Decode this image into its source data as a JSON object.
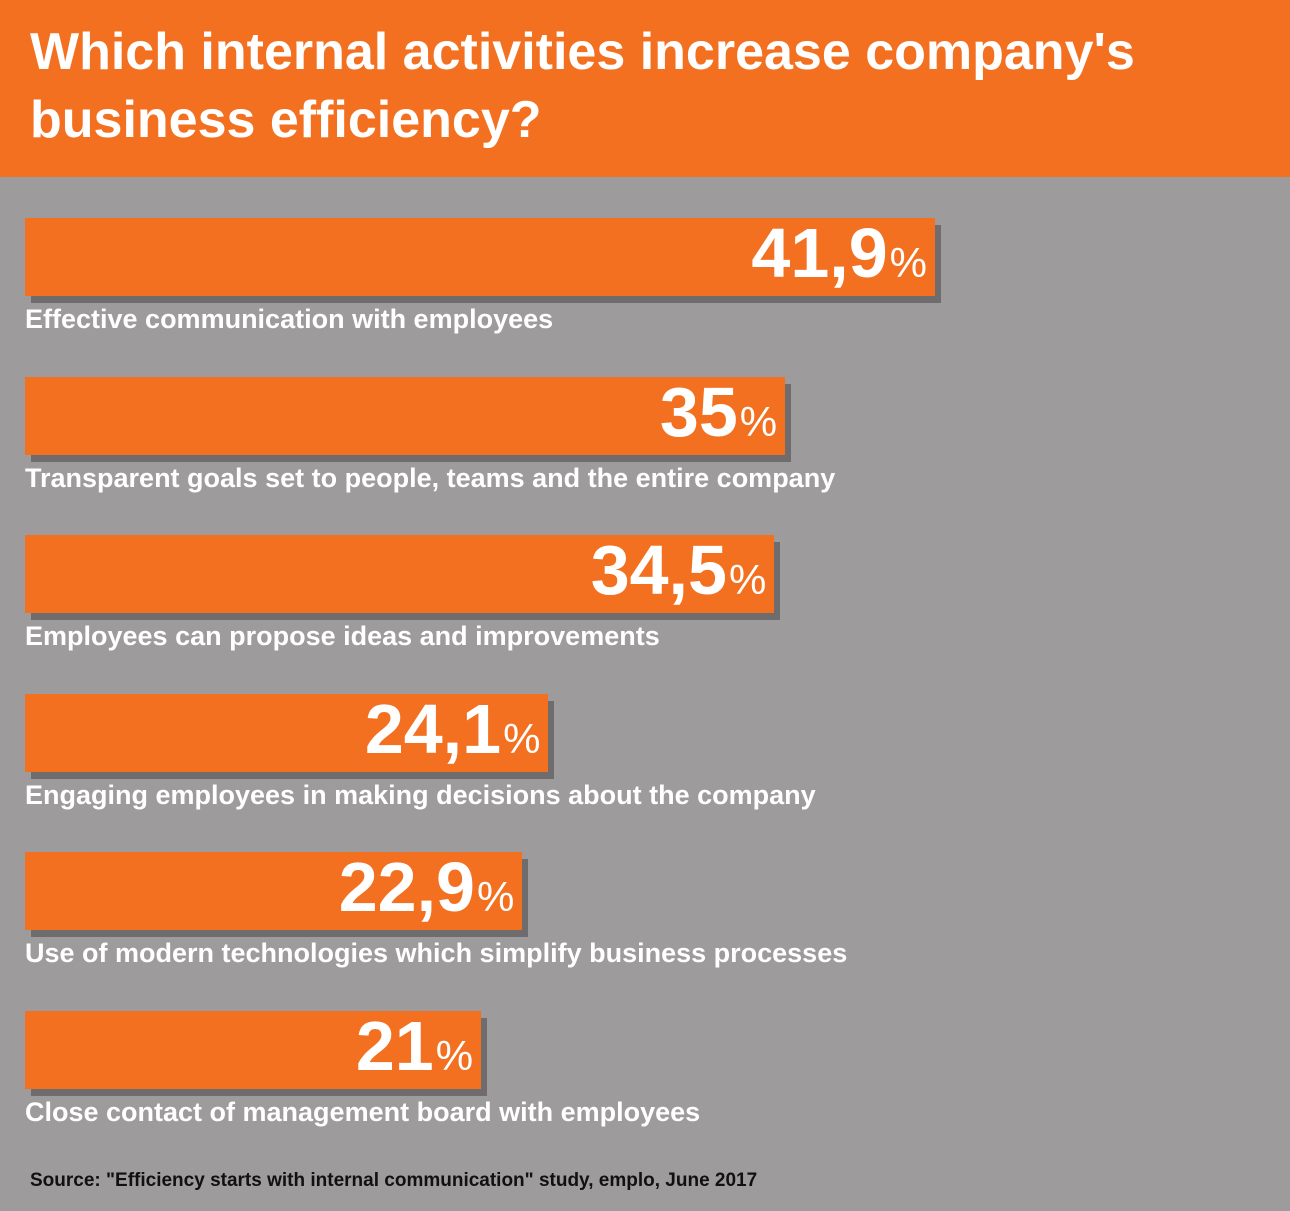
{
  "chart_data": {
    "type": "bar",
    "orientation": "horizontal",
    "title": "Which internal activities increase company's business efficiency?",
    "unit": "%",
    "categories": [
      "Effective communication with employees",
      "Transparent goals set to people, teams and the entire company",
      "Employees can propose ideas and improvements",
      "Engaging employees in making decisions about the company",
      "Use of modern technologies which simplify business processes",
      "Close contact of management board with employees"
    ],
    "values": [
      41.9,
      35,
      34.5,
      24.1,
      22.9,
      21
    ],
    "value_labels": [
      "41,9",
      "35",
      "34,5",
      "24,1",
      "22,9",
      "21"
    ],
    "xlim": [
      0,
      41.9
    ],
    "grid": false,
    "legend": "none"
  },
  "colors": {
    "bar": "#f37021",
    "background": "#9d9b9c",
    "header": "#f37021",
    "shadow": "#6e6c6d"
  },
  "source": "Source: \"Efficiency starts with internal communication\" study, emplo, June 2017"
}
